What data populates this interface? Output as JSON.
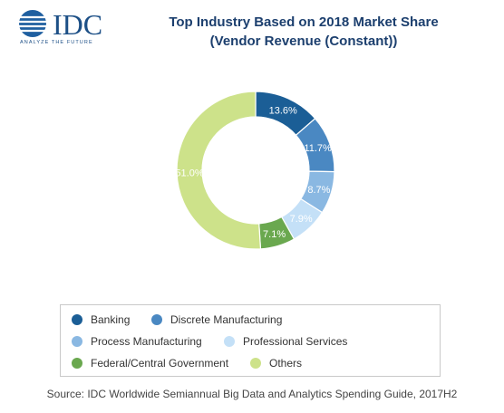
{
  "header": {
    "logo_text": "IDC",
    "logo_tagline": "ANALYZE THE FUTURE",
    "title_line1": "Top Industry Based on 2018 Market Share",
    "title_line2": "(Vendor Revenue (Constant))"
  },
  "colors": {
    "Banking": "#1b5e96",
    "Discrete Manufacturing": "#4a88c2",
    "Process Manufacturing": "#8ab8e2",
    "Professional Services": "#c4e0f7",
    "Federal/Central Government": "#6aa84f",
    "Others": "#cde28a"
  },
  "chart_data": {
    "type": "pie",
    "variant": "donut",
    "title": "Top Industry Based on 2018 Market Share (Vendor Revenue (Constant))",
    "categories": [
      "Banking",
      "Discrete Manufacturing",
      "Process Manufacturing",
      "Professional Services",
      "Federal/Central Government",
      "Others"
    ],
    "values": [
      13.6,
      11.7,
      8.7,
      7.9,
      7.1,
      51.0
    ],
    "labels": [
      "13.6%",
      "11.7%",
      "8.7%",
      "7.9%",
      "7.1%",
      "51.0%"
    ],
    "unit": "%",
    "legend_position": "bottom"
  },
  "legend": {
    "items": [
      {
        "label": "Banking"
      },
      {
        "label": "Discrete Manufacturing"
      },
      {
        "label": "Process Manufacturing"
      },
      {
        "label": "Professional Services"
      },
      {
        "label": "Federal/Central Government"
      },
      {
        "label": "Others"
      }
    ]
  },
  "footer": {
    "source": "Source: IDC Worldwide Semiannual Big Data and Analytics Spending Guide, 2017H2"
  }
}
